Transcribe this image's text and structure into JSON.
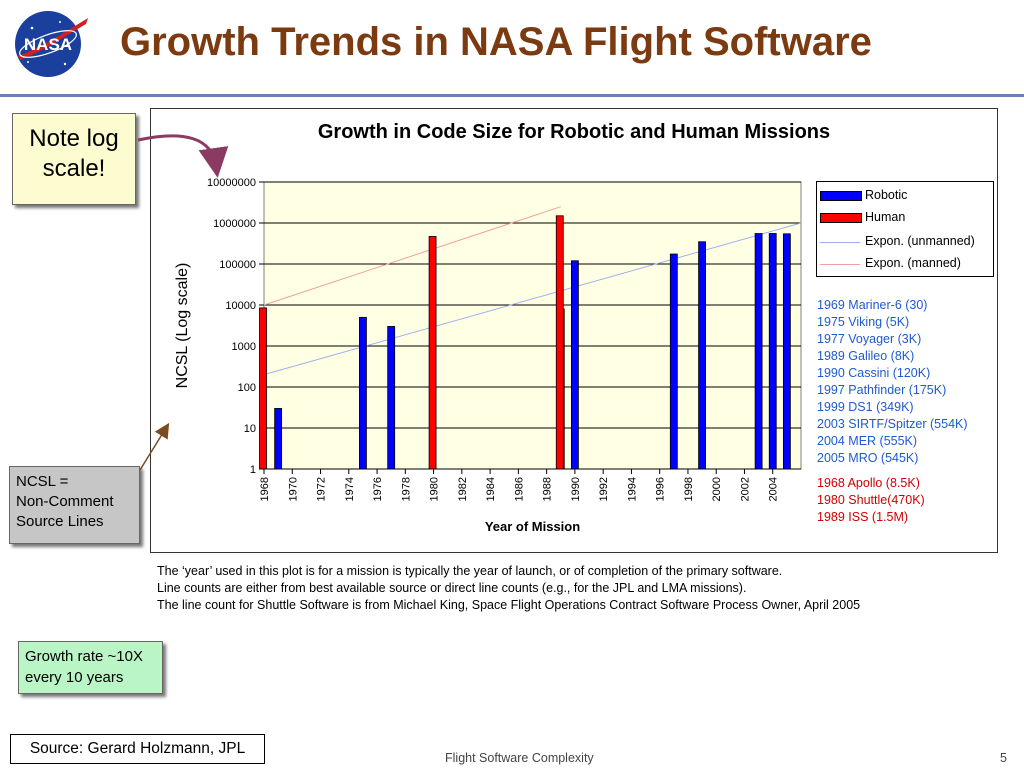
{
  "header": {
    "logo_text": "NASA",
    "title": "Growth Trends in NASA Flight Software"
  },
  "chart_data": {
    "type": "bar",
    "title": "Growth in Code Size for Robotic and Human Missions",
    "xlabel": "Year of Mission",
    "ylabel": "NCSL (Log scale)",
    "yscale": "log",
    "ylim": [
      1,
      10000000
    ],
    "yticks": [
      "1",
      "10",
      "100",
      "1000",
      "10000",
      "100000",
      "1000000",
      "10000000"
    ],
    "xlim": [
      1968,
      2006
    ],
    "xticks": [
      "1968",
      "1970",
      "1972",
      "1974",
      "1976",
      "1978",
      "1980",
      "1982",
      "1984",
      "1986",
      "1988",
      "1990",
      "1992",
      "1994",
      "1996",
      "1998",
      "2000",
      "2002",
      "2004"
    ],
    "grid": true,
    "legend_position": "right",
    "series": [
      {
        "name": "Robotic",
        "color": "#0000ff",
        "points": [
          {
            "x": 1969,
            "y": 30
          },
          {
            "x": 1975,
            "y": 5000
          },
          {
            "x": 1977,
            "y": 3000
          },
          {
            "x": 1989,
            "y": 8000
          },
          {
            "x": 1990,
            "y": 120000
          },
          {
            "x": 1997,
            "y": 175000
          },
          {
            "x": 1999,
            "y": 349000
          },
          {
            "x": 2003,
            "y": 554000
          },
          {
            "x": 2004,
            "y": 555000
          },
          {
            "x": 2005,
            "y": 545000
          }
        ]
      },
      {
        "name": "Human",
        "color": "#ff0000",
        "points": [
          {
            "x": 1968,
            "y": 8500
          },
          {
            "x": 1980,
            "y": 470000
          },
          {
            "x": 1989,
            "y": 1500000
          }
        ]
      },
      {
        "name": "Expon. (unmanned)",
        "type": "trendline",
        "color": "#9db0ec",
        "points": [
          {
            "x": 1968,
            "y": 200
          },
          {
            "x": 2006,
            "y": 1000000
          }
        ]
      },
      {
        "name": "Expon. (manned)",
        "type": "trendline",
        "color": "#f0a0a0",
        "points": [
          {
            "x": 1968,
            "y": 10000
          },
          {
            "x": 1989,
            "y": 2500000
          }
        ]
      }
    ],
    "annotations": {
      "robotic_list": [
        "1969 Mariner-6 (30)",
        "1975 Viking (5K)",
        "1977 Voyager (3K)",
        "1989 Galileo (8K)",
        "1990 Cassini (120K)",
        "1997 Pathfinder (175K)",
        "1999 DS1 (349K)",
        "2003 SIRTF/Spitzer (554K)",
        "2004 MER (555K)",
        "2005 MRO (545K)"
      ],
      "human_list": [
        "1968 Apollo (8.5K)",
        "1980 Shuttle(470K)",
        "1989 ISS (1.5M)"
      ]
    }
  },
  "notes": [
    "The ‘year’ used in this plot is for a mission is typically the year of launch, or of completion of the primary software.",
    "Line counts are either from best available source or direct line counts (e.g., for the JPL and LMA missions).",
    "The line count for Shuttle Software is from Michael King, Space Flight Operations Contract Software Process Owner, April 2005"
  ],
  "callouts": {
    "log_note_1": "Note log",
    "log_note_2": "scale!",
    "ncsl_1": "NCSL =",
    "ncsl_2": "Non-Comment",
    "ncsl_3": "Source Lines",
    "growth_1": "Growth rate ~10X",
    "growth_2": "every 10 years"
  },
  "footer": {
    "source": "Source: Gerard Holzmann, JPL",
    "center": "Flight Software Complexity",
    "page": "5"
  },
  "colors": {
    "title": "#7b3a10",
    "robotic": "#0000ff",
    "human": "#ff0000",
    "plot_bg": "#ffffe4",
    "arrow": "#8b3a62"
  }
}
